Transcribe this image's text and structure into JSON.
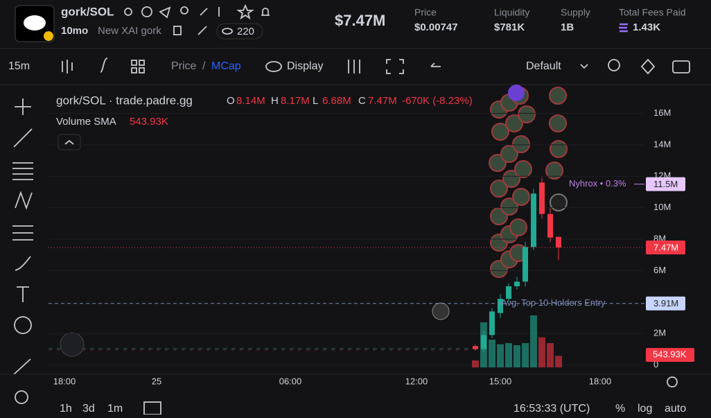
{
  "header": {
    "pair": "gork/SOL",
    "age": "10mo",
    "name": "New XAI gork",
    "viewers": "220",
    "market_cap": "$7.47M",
    "stats": [
      {
        "label": "Price",
        "value": "$0.00747"
      },
      {
        "label": "Liquidity",
        "value": "$781K"
      },
      {
        "label": "Supply",
        "value": "1B"
      },
      {
        "label": "Total Fees Paid",
        "value": "1.43K"
      }
    ]
  },
  "toolbar": {
    "interval": "15m",
    "price": "Price",
    "separator": "/",
    "mcap": "MCap",
    "display": "Display",
    "layout": "Default"
  },
  "chart_data": {
    "type": "candlestick",
    "title": "gork/SOL · trade.padre.gg",
    "legend": [
      {
        "key": "O",
        "value": "8.14M"
      },
      {
        "key": "H",
        "value": "8.17M"
      },
      {
        "key": "L",
        "value": "6.68M"
      },
      {
        "key": "C",
        "value": "7.47M"
      }
    ],
    "change": "-670K (-8.23%)",
    "volume_sma_label": "Volume SMA",
    "volume_sma": "543.93K",
    "ylim": [
      -0.6,
      17.7
    ],
    "yticks": [
      0,
      {
        "value": 2,
        "label": "2M"
      },
      {
        "value": 6,
        "label": "6M"
      },
      {
        "value": 8,
        "label": "8M"
      },
      {
        "value": 10,
        "label": "10M"
      },
      {
        "value": 12,
        "label": "12M"
      },
      {
        "value": 14,
        "label": "14M"
      },
      {
        "value": 16,
        "label": "16M"
      }
    ],
    "x_labels": [
      "18:00",
      "25",
      "06:00",
      "12:00",
      "15:00",
      "18:00"
    ],
    "up_color": "#22ab94",
    "down_color": "#f23645",
    "candles": [
      {
        "open": 1.2,
        "high": 1.3,
        "low": 0.9,
        "close": 1.0
      },
      {
        "open": 1.0,
        "high": 2.2,
        "low": 0.8,
        "close": 1.9
      },
      {
        "open": 1.9,
        "high": 3.6,
        "low": 1.7,
        "close": 3.4
      },
      {
        "open": 3.3,
        "high": 4.5,
        "low": 3.0,
        "close": 4.2
      },
      {
        "open": 4.2,
        "high": 5.2,
        "low": 4.0,
        "close": 5.0
      },
      {
        "open": 5.0,
        "high": 5.6,
        "low": 4.8,
        "close": 5.3
      },
      {
        "open": 5.3,
        "high": 7.8,
        "low": 5.0,
        "close": 7.5
      },
      {
        "open": 7.5,
        "high": 11.2,
        "low": 7.3,
        "close": 10.9
      },
      {
        "open": 11.6,
        "high": 11.9,
        "low": 9.3,
        "close": 9.6
      },
      {
        "open": 9.6,
        "high": 10.0,
        "low": 7.8,
        "close": 8.1
      },
      {
        "open": 8.14,
        "high": 8.17,
        "low": 6.68,
        "close": 7.47
      }
    ],
    "volume_ylim": [
      0,
      3000
    ],
    "volume": [
      300,
      1950,
      1200,
      1000,
      1050,
      960,
      1050,
      2250,
      1300,
      1050,
      500
    ],
    "price_lines": [
      {
        "value": 11.5,
        "label": "11.5M",
        "note": "Nyhrox • 0.3%",
        "color": "#c27ee8"
      },
      {
        "value": 7.47,
        "label": "7.47M",
        "color": "#f23645"
      },
      {
        "value": 3.91,
        "label": "3.91M",
        "note": "Avg. Top 10 Holders Entry",
        "color": "#7d8bb5"
      }
    ]
  },
  "footer": {
    "ranges": [
      "1h",
      "3d",
      "1m"
    ],
    "time": "16:53:33 (UTC)",
    "percent": "%",
    "log": "log",
    "auto": "auto"
  }
}
